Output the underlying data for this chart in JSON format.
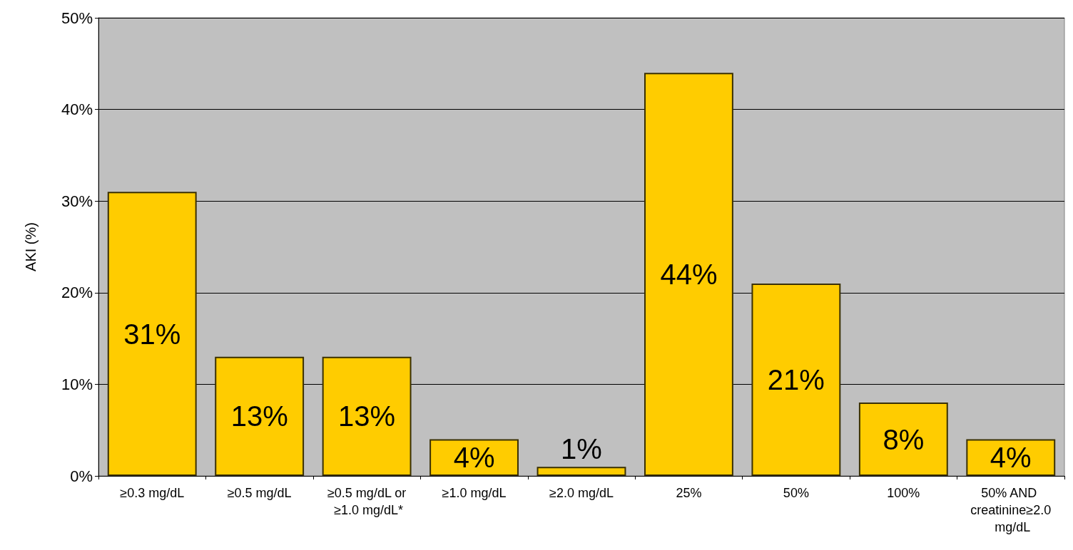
{
  "chart_data": {
    "type": "bar",
    "ylabel": "AKI (%)",
    "categories": [
      "≥0.3 mg/dL",
      "≥0.5 mg/dL",
      "≥0.5 mg/dL or ≥1.0 mg/dL*",
      "≥1.0 mg/dL",
      "≥2.0 mg/dL",
      "25%",
      "50%",
      "100%",
      "50% AND creatinine≥2.0 mg/dL"
    ],
    "values": [
      31,
      13,
      13,
      4,
      1,
      44,
      21,
      8,
      4
    ],
    "value_labels": [
      "31%",
      "13%",
      "13%",
      "4%",
      "1%",
      "44%",
      "21%",
      "8%",
      "4%"
    ],
    "color": "#ffcc00",
    "ylim": [
      0,
      50
    ],
    "yticks": [
      {
        "value": 0,
        "label": "0%"
      },
      {
        "value": 10,
        "label": "10%"
      },
      {
        "value": 20,
        "label": "20%"
      },
      {
        "value": 30,
        "label": "30%"
      },
      {
        "value": 40,
        "label": "40%"
      },
      {
        "value": 50,
        "label": "50%"
      }
    ],
    "grid": true
  }
}
